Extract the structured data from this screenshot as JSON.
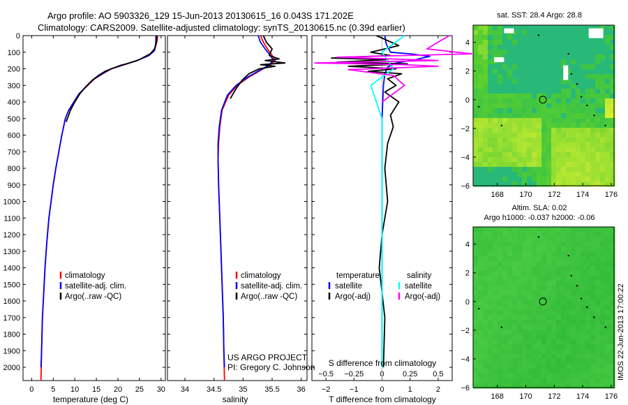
{
  "header": {
    "line1": "Argo profile: AO 5903326_129 15-Jun-2013 20130615_16 0.043S 171.202E",
    "line2": "Climatology: CARS2009. Satellite-adjusted climatology: synTS_20130615.nc (0.39d earlier)"
  },
  "side_label": "IMOS 22-Jun-2013 17:00:22",
  "chart_data": [
    {
      "id": "temperature",
      "type": "line",
      "xlabel": "temperature (deg C)",
      "ylabel": "",
      "xlim": [
        -2,
        31
      ],
      "ylim": [
        2080,
        0
      ],
      "xticks": [
        0,
        5,
        10,
        15,
        20,
        25,
        30
      ],
      "xtick_labels": [
        "0",
        "5",
        "10",
        "15",
        "20",
        "25",
        "30"
      ],
      "yticks": [
        0,
        100,
        200,
        300,
        400,
        500,
        600,
        700,
        800,
        900,
        1000,
        1100,
        1200,
        1300,
        1400,
        1500,
        1600,
        1700,
        1800,
        1900,
        2000
      ],
      "ytick_labels": [
        "0",
        "100",
        "200",
        "300",
        "400",
        "500",
        "600",
        "700",
        "800",
        "900",
        "1000",
        "1100",
        "1200",
        "1300",
        "1400",
        "1500",
        "1600",
        "1700",
        "1800",
        "1900",
        "2000"
      ],
      "legend": [
        "climatology",
        "satellite-adj. clim.",
        "Argo(..raw -QC)"
      ],
      "series": [
        {
          "name": "climatology",
          "color": "#ff0000",
          "x": [
            29.2,
            29.1,
            28.8,
            28.4,
            27.0,
            24.5,
            21.5,
            18.5,
            16.5,
            14.6,
            13.0,
            11.0,
            9.8,
            8.6,
            7.8,
            7.0,
            6.3,
            5.6,
            5.0,
            4.5,
            4.0,
            3.5,
            3.1,
            2.8,
            2.5,
            2.3,
            2.15
          ],
          "y": [
            0,
            30,
            60,
            90,
            120,
            150,
            175,
            200,
            230,
            260,
            300,
            350,
            400,
            450,
            500,
            600,
            700,
            800,
            900,
            1000,
            1100,
            1250,
            1400,
            1550,
            1700,
            1900,
            2080
          ]
        },
        {
          "name": "satellite-adj. clim.",
          "color": "#0000ff",
          "x": [
            28.8,
            28.8,
            28.7,
            28.5,
            27.2,
            24.5,
            21.4,
            18.4,
            16.4,
            14.5,
            12.9,
            11.0,
            9.8,
            8.6,
            7.8,
            7.0,
            6.3,
            5.6,
            5.0,
            4.5,
            4.0,
            3.5,
            3.1,
            2.8,
            2.5,
            2.3,
            2.15
          ],
          "y": [
            0,
            30,
            60,
            90,
            120,
            150,
            175,
            200,
            230,
            260,
            300,
            350,
            400,
            450,
            500,
            600,
            700,
            800,
            900,
            1000,
            1100,
            1250,
            1400,
            1550,
            1700,
            1900,
            2000
          ]
        },
        {
          "name": "Argo(..raw -QC)",
          "color": "#000000",
          "x": [
            29.0,
            28.9,
            28.5,
            27.5,
            26.0,
            25.0,
            23.5,
            22.0,
            20.5,
            19.0,
            17.0,
            15.5,
            14.0,
            12.5,
            11.2,
            10.0,
            9.0,
            8.0
          ],
          "y": [
            0,
            40,
            80,
            110,
            130,
            145,
            158,
            170,
            180,
            195,
            215,
            240,
            270,
            310,
            350,
            400,
            450,
            520
          ]
        }
      ]
    },
    {
      "id": "salinity",
      "type": "line",
      "xlabel": "salinity",
      "xlim": [
        33.7,
        36.1
      ],
      "ylim": [
        2080,
        0
      ],
      "xticks": [
        34,
        34.5,
        35,
        35.5,
        36
      ],
      "xtick_labels": [
        "34",
        "34.5",
        "35",
        "35.5",
        "36"
      ],
      "legend": [
        "climatology",
        "satellite-adj. clim.",
        "Argo(..raw -QC)"
      ],
      "annotation": [
        "US ARGO PROJECT",
        "PI: Gregory C. Johnson"
      ],
      "series": [
        {
          "name": "climatology",
          "color": "#ff0000",
          "x": [
            35.3,
            35.35,
            35.42,
            35.5,
            35.55,
            35.45,
            35.3,
            35.1,
            34.9,
            34.75,
            34.64,
            34.6,
            34.58,
            34.57,
            34.58,
            34.6,
            34.62,
            34.64,
            34.66,
            34.67,
            34.68
          ],
          "y": [
            0,
            40,
            80,
            120,
            150,
            180,
            210,
            250,
            300,
            360,
            450,
            550,
            650,
            750,
            900,
            1100,
            1300,
            1500,
            1700,
            1900,
            2080
          ]
        },
        {
          "name": "satellite-adj. clim.",
          "color": "#0000ff",
          "x": [
            35.26,
            35.3,
            35.38,
            35.47,
            35.52,
            35.44,
            35.28,
            35.08,
            34.88,
            34.73,
            34.63,
            34.59,
            34.57,
            34.57,
            34.58,
            34.6,
            34.62,
            34.64,
            34.66,
            34.67,
            34.68
          ],
          "y": [
            0,
            40,
            80,
            120,
            150,
            180,
            210,
            250,
            300,
            360,
            450,
            550,
            650,
            750,
            900,
            1100,
            1300,
            1500,
            1700,
            1900,
            2000
          ]
        },
        {
          "name": "Argo(..raw -QC)",
          "color": "#000000",
          "x": [
            35.35,
            35.4,
            35.5,
            35.45,
            35.62,
            35.38,
            35.72,
            35.3,
            35.55,
            35.28,
            35.1,
            34.98,
            34.88,
            34.78
          ],
          "y": [
            0,
            40,
            80,
            120,
            140,
            150,
            165,
            175,
            185,
            200,
            230,
            270,
            320,
            380
          ]
        }
      ]
    },
    {
      "id": "difference",
      "type": "line",
      "xlabel": "T difference from climatology",
      "xlabel_top": "S difference from climatology",
      "xlim": [
        -2.5,
        2.5
      ],
      "ylim": [
        2080,
        0
      ],
      "xticks_T": [
        -2,
        -1,
        0,
        1,
        2
      ],
      "xtick_labels_T": [
        "−2",
        "−1",
        "0",
        "1",
        "2"
      ],
      "xticks_S": [
        -0.5,
        -0.25,
        0,
        0.25,
        0.5
      ],
      "xtick_labels_S": [
        "−0.5",
        "−0.25",
        "0",
        "0.25",
        "0.5"
      ],
      "legend_headers": [
        "temperature",
        "salinity"
      ],
      "legend": [
        "satellite",
        "Argo(-adj)",
        "satellite",
        "Argo(-adj)"
      ],
      "series": [
        {
          "name": "T satellite",
          "color": "#0000ff",
          "x": [
            0.1,
            0.15,
            0.3,
            1.0,
            1.7,
            1.2,
            0.5,
            0.2,
            0.1,
            0.05,
            0.0,
            0.0,
            0.0,
            0.0
          ],
          "y": [
            0,
            50,
            100,
            110,
            125,
            145,
            165,
            190,
            230,
            300,
            500,
            1000,
            1500,
            2000
          ]
        },
        {
          "name": "T Argo(-adj)",
          "color": "#000000",
          "x": [
            -0.2,
            0.6,
            -0.4,
            0.3,
            -1.8,
            0.2,
            -1.6,
            0.9,
            -1.2,
            0.5,
            -0.5,
            0.7,
            0.2,
            0.5,
            0.1,
            0.6,
            0.3,
            0.4,
            0.2,
            0.1,
            0.2,
            0.0,
            -0.1,
            0.1,
            0.05
          ],
          "y": [
            0,
            60,
            100,
            120,
            135,
            145,
            160,
            170,
            185,
            200,
            215,
            230,
            260,
            300,
            340,
            400,
            480,
            550,
            650,
            800,
            1000,
            1200,
            1400,
            1700,
            2000
          ]
        },
        {
          "name": "S satellite",
          "color": "#00ffff",
          "x": [
            0.2,
            0.0,
            0.1,
            -0.1,
            0.0,
            0.0,
            0.0
          ],
          "y": [
            0,
            100,
            200,
            300,
            500,
            1000,
            2000
          ]
        },
        {
          "name": "S Argo(-adj)",
          "color": "#ff00ff",
          "x": [
            0.6,
            0.4,
            0.8,
            -0.4,
            0.5,
            -0.6,
            0.2,
            0.5,
            -0.3,
            0.1,
            0.2,
            0.0
          ],
          "y": [
            0,
            80,
            110,
            130,
            150,
            165,
            175,
            185,
            205,
            240,
            300,
            400
          ]
        }
      ]
    },
    {
      "id": "sst_map",
      "type": "heatmap",
      "title": "sat. SST: 28.4  Argo: 28.8",
      "xlim": [
        166.3,
        176.2
      ],
      "ylim": [
        -6,
        5.2
      ],
      "xticks": [
        168,
        170,
        172,
        174,
        176
      ],
      "xtick_labels": [
        "168",
        "170",
        "172",
        "174",
        "176"
      ],
      "yticks": [
        4,
        2,
        0,
        -2,
        -4,
        -6
      ],
      "ytick_labels": [
        "4",
        "2",
        "0",
        "−2",
        "−4",
        "−6"
      ],
      "marker": {
        "lon": 171.2,
        "lat": 0.0
      },
      "colors": {
        "teal": "#22bb70",
        "green": "#35cc35",
        "yellow": "#bfe83a"
      }
    },
    {
      "id": "sla_map",
      "type": "heatmap",
      "title": "Altim. SLA: 0.02",
      "subtitle": "Argo h1000: -0.037  h2000: -0.06",
      "xlim": [
        166.3,
        176.2
      ],
      "ylim": [
        -6,
        5.2
      ],
      "xticks": [
        168,
        170,
        172,
        174,
        176
      ],
      "xtick_labels": [
        "168",
        "170",
        "172",
        "174",
        "176"
      ],
      "yticks": [
        4,
        2,
        0,
        -2,
        -4,
        -6
      ],
      "ytick_labels": [
        "4",
        "2",
        "0",
        "−2",
        "−4",
        "−6"
      ],
      "marker": {
        "lon": 171.2,
        "lat": 0.0
      },
      "colors": {
        "base": "#3ec53e",
        "light": "#52d048"
      }
    }
  ]
}
